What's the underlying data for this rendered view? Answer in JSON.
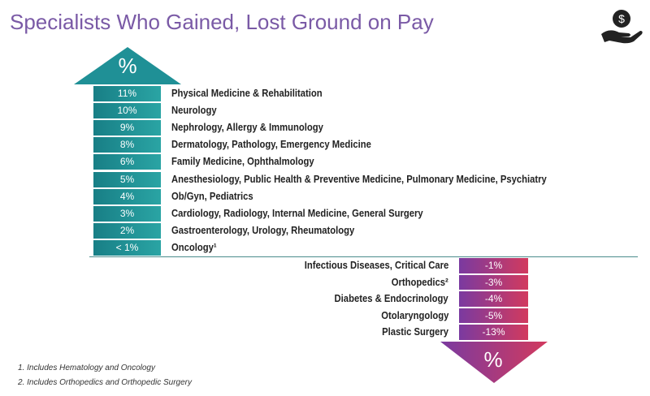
{
  "chart_data": {
    "type": "table",
    "title": "Specialists Who Gained, Lost Ground on Pay",
    "gained": {
      "symbol": "%",
      "rows": [
        {
          "value": "11%",
          "specialties": "Physical Medicine & Rehabilitation"
        },
        {
          "value": "10%",
          "specialties": "Neurology"
        },
        {
          "value": "9%",
          "specialties": "Nephrology, Allergy & Immunology"
        },
        {
          "value": "8%",
          "specialties": "Dermatology, Pathology, Emergency Medicine"
        },
        {
          "value": "6%",
          "specialties": "Family Medicine, Ophthalmology"
        },
        {
          "value": "5%",
          "specialties": "Anesthesiology, Public Health & Preventive Medicine, Pulmonary Medicine, Psychiatry"
        },
        {
          "value": "4%",
          "specialties": "Ob/Gyn, Pediatrics"
        },
        {
          "value": "3%",
          "specialties": "Cardiology, Radiology, Internal Medicine, General Surgery"
        },
        {
          "value": "2%",
          "specialties": "Gastroenterology, Urology, Rheumatology"
        },
        {
          "value": "< 1%",
          "specialties": "Oncology¹"
        }
      ]
    },
    "lost": {
      "symbol": "%",
      "rows": [
        {
          "value": "-1%",
          "specialties": "Infectious Diseases, Critical Care"
        },
        {
          "value": "-3%",
          "specialties": "Orthopedics²"
        },
        {
          "value": "-4%",
          "specialties": "Diabetes & Endocrinology"
        },
        {
          "value": "-5%",
          "specialties": "Otolaryngology"
        },
        {
          "value": "-13%",
          "specialties": "Plastic Surgery"
        }
      ]
    },
    "footnotes": [
      "1.   Includes Hematology and Oncology",
      "2.   Includes Orthopedics and Orthopedic Surgery"
    ]
  },
  "colors": {
    "title": "#7a5aa6",
    "gain": "#1f9096",
    "loss": "#a83a7a"
  },
  "icons": {
    "logo": "hand-dollar-icon"
  }
}
